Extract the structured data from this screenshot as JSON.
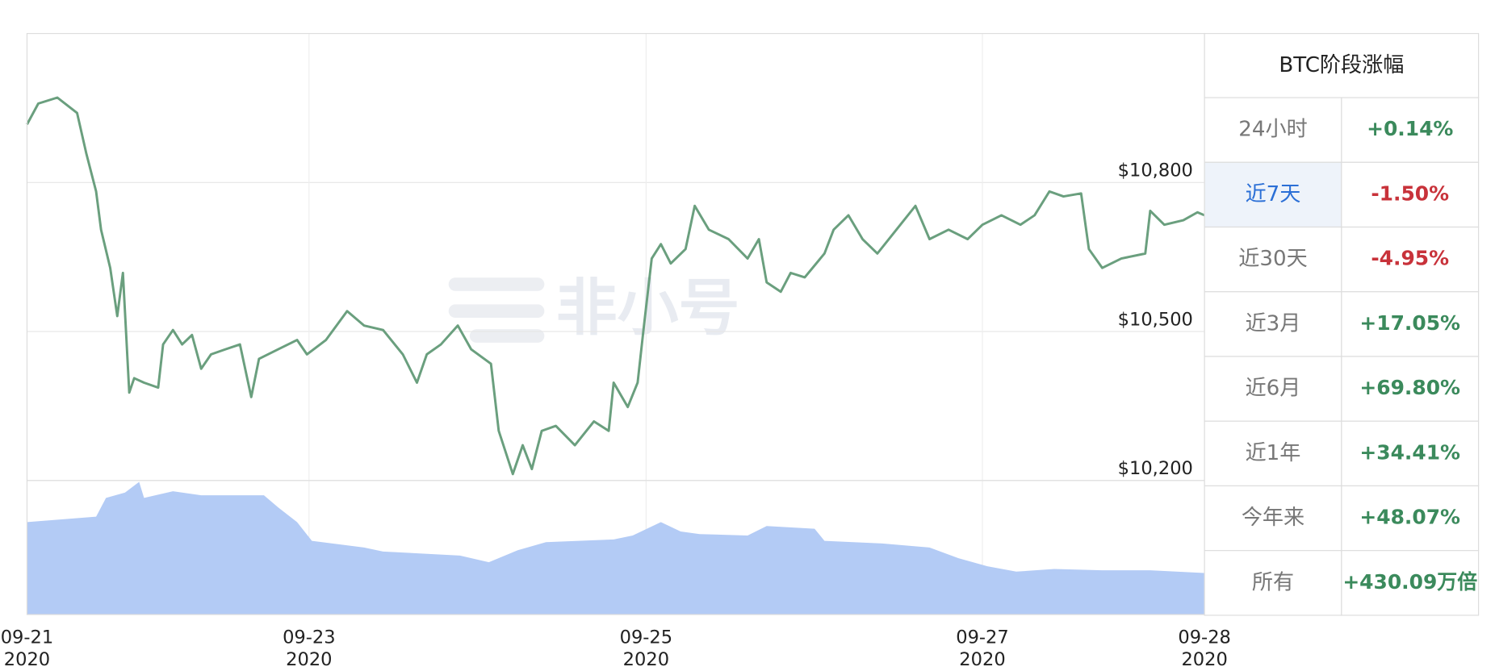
{
  "chart_data": {
    "type": "line",
    "series": [
      {
        "name": "BTC",
        "color": "#6a9f7e",
        "x": [
          0,
          1.6,
          4.3,
          7.1,
          8.4,
          9.8,
          10.5,
          11.8,
          12.8,
          13.6,
          14.5,
          15.2,
          16.6,
          18.6,
          19.3,
          20.7,
          22.0,
          23.4,
          24.7,
          26.1,
          28.1,
          30.2,
          31.8,
          32.9,
          35.6,
          38.3,
          39.7,
          42.4,
          45.4,
          47.8,
          50.5,
          53.3,
          55.3,
          56.7,
          58.7,
          61.1,
          63.0,
          65.8,
          66.9,
          68.9,
          70.3,
          71.6,
          73.0,
          75.0,
          77.7,
          80.4,
          82.5,
          83.2,
          85.2,
          86.6,
          87.5,
          88.6,
          89.9,
          91.3,
          93.4,
          94.7,
          96.7,
          99.5,
          102.2,
          103.8,
          104.9,
          106.9,
          108.3,
          110.3,
          113.1,
          114.4,
          116.5,
          118.5,
          120.6,
          123.3,
          126.0,
          128.0,
          130.7,
          133.4,
          135.5,
          138.2,
          140.9,
          142.9,
          145.0,
          147.0,
          149.5,
          150.6,
          152.5,
          155.2,
          158.6,
          159.3,
          161.3,
          164.0,
          166.0,
          167.0
        ],
        "values": [
          10917,
          10959,
          10971,
          10940,
          10859,
          10782,
          10705,
          10628,
          10531,
          10618,
          10377,
          10406,
          10397,
          10387,
          10474,
          10503,
          10474,
          10493,
          10425,
          10454,
          10464,
          10474,
          10368,
          10445,
          10464,
          10483,
          10454,
          10483,
          10541,
          10512,
          10503,
          10454,
          10397,
          10454,
          10474,
          10512,
          10464,
          10435,
          10300,
          10213,
          10271,
          10223,
          10300,
          10310,
          10271,
          10319,
          10300,
          10397,
          10348,
          10397,
          10512,
          10647,
          10676,
          10637,
          10666,
          10753,
          10705,
          10686,
          10647,
          10686,
          10599,
          10580,
          10618,
          10609,
          10657,
          10705,
          10734,
          10686,
          10657,
          10705,
          10753,
          10686,
          10705,
          10686,
          10715,
          10734,
          10715,
          10734,
          10782,
          10772,
          10778,
          10666,
          10628,
          10647,
          10657,
          10743,
          10715,
          10724,
          10740,
          10734
        ]
      }
    ],
    "volume": {
      "color": "#b3cbf5",
      "x": [
        0,
        9.8,
        11.2,
        13.9,
        15.9,
        16.6,
        20.7,
        24.7,
        33.6,
        35.6,
        38.3,
        40.4,
        47.8,
        50.5,
        61.4,
        65.5,
        69.6,
        73.6,
        83.2,
        85.9,
        89.9,
        92.7,
        95.4,
        102.2,
        104.9,
        111.7,
        113.1,
        121.3,
        128.0,
        132.1,
        136.2,
        140.3,
        145.7,
        152.5,
        159.3,
        167.0
      ],
      "values": [
        69,
        73,
        87,
        91,
        99,
        87,
        92,
        89,
        89,
        80,
        69,
        55,
        50,
        47,
        44,
        39,
        48,
        54,
        56,
        59,
        69,
        62,
        60,
        59,
        66,
        64,
        55,
        53,
        50,
        42,
        36,
        32,
        34,
        33,
        33,
        31
      ],
      "ylim": [
        0,
        100
      ]
    },
    "xlim": [
      0,
      167
    ],
    "xticks": [
      {
        "value": 0,
        "label": "09-21\n2020"
      },
      {
        "value": 40,
        "label": "09-23\n2020"
      },
      {
        "value": 87.8,
        "label": "09-25\n2020"
      },
      {
        "value": 135.5,
        "label": "09-27\n2020"
      },
      {
        "value": 167,
        "label": "09-28\n2020"
      }
    ],
    "ylim": [
      10200,
      11100
    ],
    "yticks": [
      {
        "value": 10200,
        "label": "$10,200"
      },
      {
        "value": 10500,
        "label": "$10,500"
      },
      {
        "value": 10800,
        "label": "$10,800"
      }
    ],
    "grid": true,
    "watermark": "非小号"
  },
  "table": {
    "title": "BTC阶段涨幅",
    "selected_row": 1,
    "rows": [
      {
        "label": "24小时",
        "value": "+0.14%",
        "color": "#3b8a5c"
      },
      {
        "label": "近7天",
        "value": "-1.50%",
        "color": "#c8323a"
      },
      {
        "label": "近30天",
        "value": "-4.95%",
        "color": "#c8323a"
      },
      {
        "label": "近3月",
        "value": "+17.05%",
        "color": "#3b8a5c"
      },
      {
        "label": "近6月",
        "value": "+69.80%",
        "color": "#3b8a5c"
      },
      {
        "label": "近1年",
        "value": "+34.41%",
        "color": "#3b8a5c"
      },
      {
        "label": "今年来",
        "value": "+48.07%",
        "color": "#3b8a5c"
      },
      {
        "label": "所有",
        "value": "+430.09万倍",
        "color": "#3b8a5c"
      }
    ]
  }
}
